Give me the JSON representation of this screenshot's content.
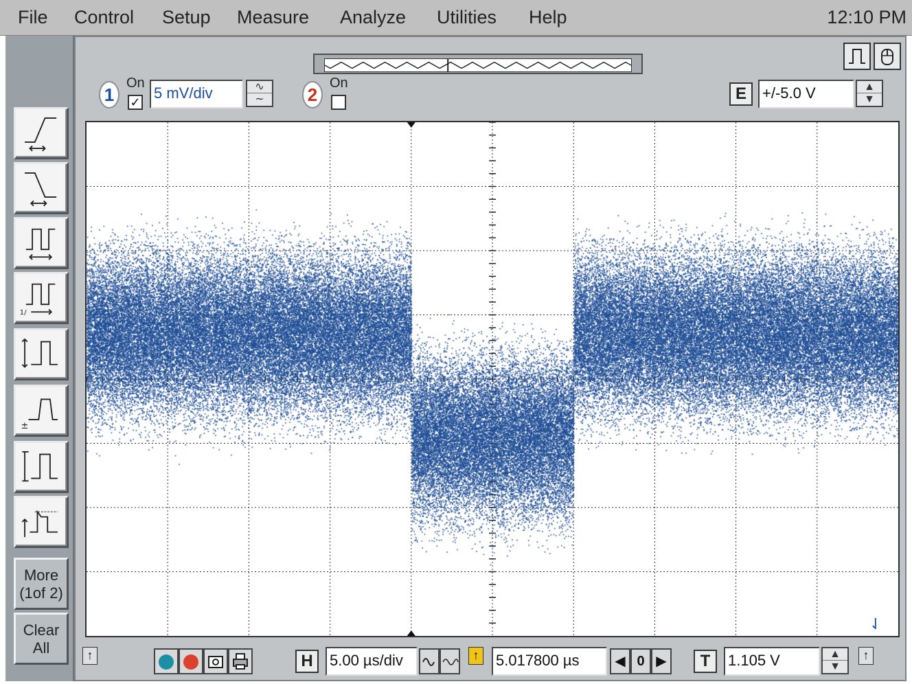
{
  "menu": {
    "file": "File",
    "control": "Control",
    "setup": "Setup",
    "measure": "Measure",
    "analyze": "Analyze",
    "utilities": "Utilities",
    "help": "Help",
    "clock": "12:10 PM"
  },
  "toolbar": {
    "tools": [
      {
        "icon": "rise-time-icon"
      },
      {
        "icon": "fall-time-icon"
      },
      {
        "icon": "period-icon"
      },
      {
        "icon": "frequency-icon"
      },
      {
        "icon": "peak-to-peak-icon"
      },
      {
        "icon": "amplitude-icon"
      },
      {
        "icon": "top-base-icon"
      },
      {
        "icon": "overshoot-icon"
      }
    ],
    "more_label_1": "More",
    "more_label_2": "(1of 2)",
    "clear_label_1": "Clear",
    "clear_label_2": "All"
  },
  "channel1": {
    "number": "1",
    "on_label": "On",
    "checked": true,
    "scale": "5 mV/div"
  },
  "channel2": {
    "number": "2",
    "on_label": "On",
    "checked": false
  },
  "external": {
    "label": "E",
    "range": "+/-5.0 V"
  },
  "timebase": {
    "label": "H",
    "scale": "5.00 µs/div",
    "position": "5.017800 µs",
    "delay_ref": "0"
  },
  "trigger": {
    "label": "T",
    "level": "1.105 V"
  },
  "colors": {
    "trace": "#1f4e96",
    "grid": "#333333",
    "panel": "#c0c4c7",
    "toolbar": "#9aa1a6"
  },
  "display": {
    "grid_divisions_x": 10,
    "grid_divisions_y": 8,
    "trace_segments": [
      {
        "x_start_div": 0,
        "x_end_div": 4,
        "center_div": 3.3,
        "spread_div": 0.6
      },
      {
        "x_start_div": 4,
        "x_end_div": 6,
        "center_div": 4.9,
        "spread_div": 0.6
      },
      {
        "x_start_div": 6,
        "x_end_div": 10,
        "center_div": 3.3,
        "spread_div": 0.6
      }
    ]
  }
}
